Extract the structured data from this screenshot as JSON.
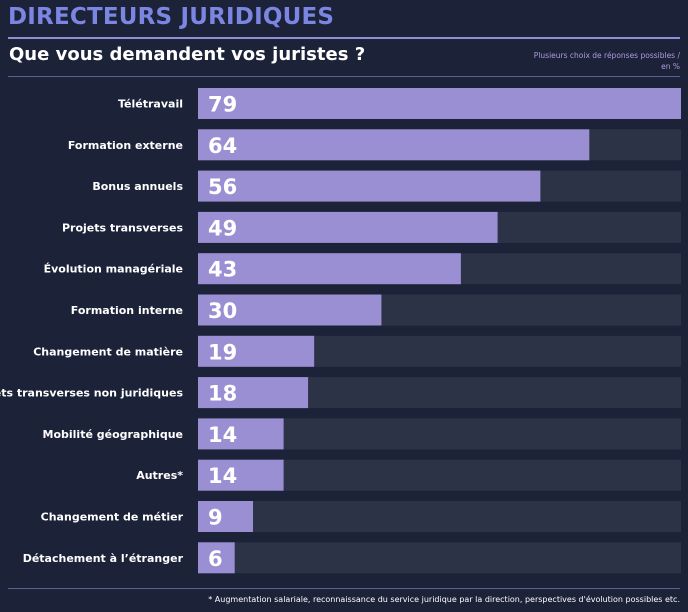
{
  "header": {
    "title": "DIRECTEURS JURIDIQUES",
    "question": "Que vous demandent vos juristes ?",
    "note_line1": "Plusieurs choix de réponses possibles /",
    "note_line2": "en  %"
  },
  "footnote": "* Augmentation salariale, reconnaissance du service juridique par la direction, perspectives d'évolution possibles etc.",
  "colors": {
    "background": "#1c2238",
    "bar": "#9b8fd4",
    "track": "#2c3347",
    "accent": "#7b86e2"
  },
  "chart_data": {
    "type": "bar",
    "orientation": "horizontal",
    "unit": "%",
    "xlim": [
      0,
      79
    ],
    "categories": [
      "Télétravail",
      "Formation externe",
      "Bonus annuels",
      "Projets transverses",
      "Évolution managériale",
      "Formation interne",
      "Changement de matière",
      "Projets transverses non juridiques",
      "Mobilité géographique",
      "Autres*",
      "Changement de métier",
      "Détachement à l’étranger"
    ],
    "values": [
      79,
      64,
      56,
      49,
      43,
      30,
      19,
      18,
      14,
      14,
      9,
      6
    ]
  }
}
